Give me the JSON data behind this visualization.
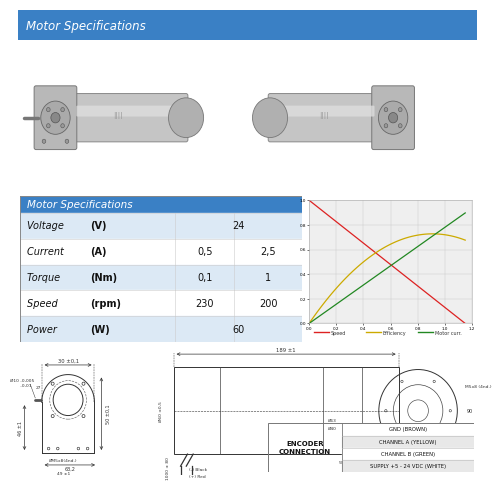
{
  "title": "Motor Specifications",
  "header_bg": "#3a80c5",
  "header_text_color": "#ffffff",
  "bg_color": "#ffffff",
  "table_title": "Motor Specifications",
  "table_rows": [
    {
      "label": "Voltage",
      "unit": "V",
      "col1": "",
      "col2": "24"
    },
    {
      "label": "Current",
      "unit": "A",
      "col1": "0,5",
      "col2": "2,5"
    },
    {
      "label": "Torque",
      "unit": "Nm",
      "col1": "0,1",
      "col2": "1"
    },
    {
      "label": "Speed",
      "unit": "rpm",
      "col1": "230",
      "col2": "200"
    },
    {
      "label": "Power",
      "unit": "W",
      "col1": "",
      "col2": "60"
    }
  ],
  "table_header_bg": "#3a80c5",
  "table_row_bg_odd": "#dce9f5",
  "table_row_bg_even": "#ffffff",
  "encoder_labels": [
    "GND (BROWN)",
    "CHANNEL A (YELLOW)",
    "CHANNEL B (GREEN)",
    "SUPPLY +5 - 24 VDC (WHITE)"
  ],
  "encoder_title": "ENCODER\nCONNECTION",
  "graph_bg": "#f0f0f0",
  "curve_speed_color": "#dd2222",
  "curve_eff_color": "#ccaa00",
  "curve_curr_color": "#228822"
}
